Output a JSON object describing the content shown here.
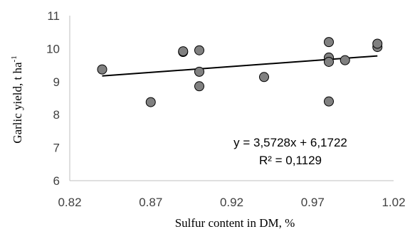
{
  "chart_data": {
    "type": "scatter",
    "xlabel": "Sulfur content in DM, %",
    "ylabel": "Garlic yield, t ha",
    "ylabel_superscript": "-1",
    "xlim": [
      0.82,
      1.02
    ],
    "ylim": [
      6,
      11
    ],
    "x_ticks": [
      "0.82",
      "0.87",
      "0.92",
      "0.97",
      "1.02"
    ],
    "y_ticks": [
      "6",
      "7",
      "8",
      "9",
      "10",
      "11"
    ],
    "grid": false,
    "points": [
      {
        "x": 0.84,
        "y": 9.37
      },
      {
        "x": 0.87,
        "y": 8.38
      },
      {
        "x": 0.89,
        "y": 9.9
      },
      {
        "x": 0.89,
        "y": 9.92
      },
      {
        "x": 0.9,
        "y": 9.95
      },
      {
        "x": 0.9,
        "y": 9.3
      },
      {
        "x": 0.9,
        "y": 8.86
      },
      {
        "x": 0.94,
        "y": 9.14
      },
      {
        "x": 0.98,
        "y": 10.2
      },
      {
        "x": 0.98,
        "y": 9.73
      },
      {
        "x": 0.98,
        "y": 9.6
      },
      {
        "x": 0.98,
        "y": 8.4
      },
      {
        "x": 0.99,
        "y": 9.65
      },
      {
        "x": 1.01,
        "y": 10.05
      },
      {
        "x": 1.01,
        "y": 10.15
      }
    ],
    "trendline": {
      "slope": 3.5728,
      "intercept": 6.1722,
      "x_range": [
        0.84,
        1.01
      ]
    },
    "equation_text": "y = 3,5728x + 6,1722",
    "r2_text": "R² = 0,1129",
    "colors": {
      "marker_fill": "#808080",
      "marker_stroke": "#000000",
      "trendline": "#000000",
      "axis": "#bfbfbf"
    }
  }
}
